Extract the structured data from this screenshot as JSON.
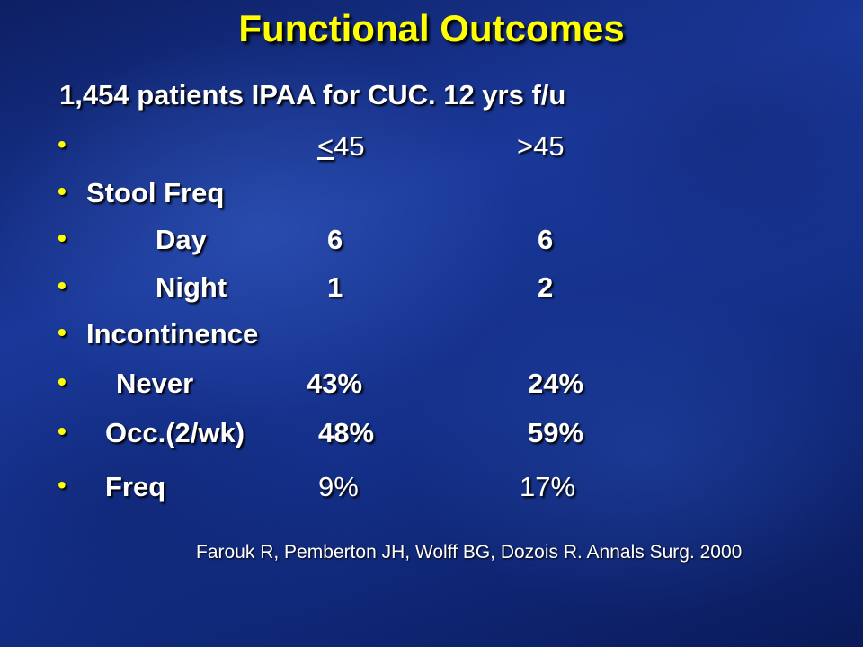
{
  "slide": {
    "title": "Functional Outcomes",
    "subtitle": "1,454 patients IPAA for CUC. 12 yrs f/u",
    "bullet_glyph": "•",
    "header_row": {
      "lt_symbol": "<",
      "lt_value": "45",
      "gt_label": ">45"
    },
    "rows": [
      {
        "label": "Stool Freq"
      },
      {
        "label": "Day",
        "col1": "6",
        "col2": "6"
      },
      {
        "label": "Night",
        "col1": "1",
        "col2": "2"
      },
      {
        "label": "Incontinence"
      },
      {
        "label": "Never",
        "col1": "43%",
        "col2": "24%"
      },
      {
        "label": "Occ.(2/wk)",
        "col1": "48%",
        "col2": "59%"
      },
      {
        "label": "Freq",
        "col1": "9%",
        "col2": "17%"
      }
    ],
    "citation": "Farouk R, Pemberton JH, Wolff BG, Dozois R. Annals Surg. 2000",
    "colors": {
      "title": "#ffff00",
      "text": "#ffffff",
      "bullet": "#ffff00",
      "background": "#14308a"
    }
  }
}
